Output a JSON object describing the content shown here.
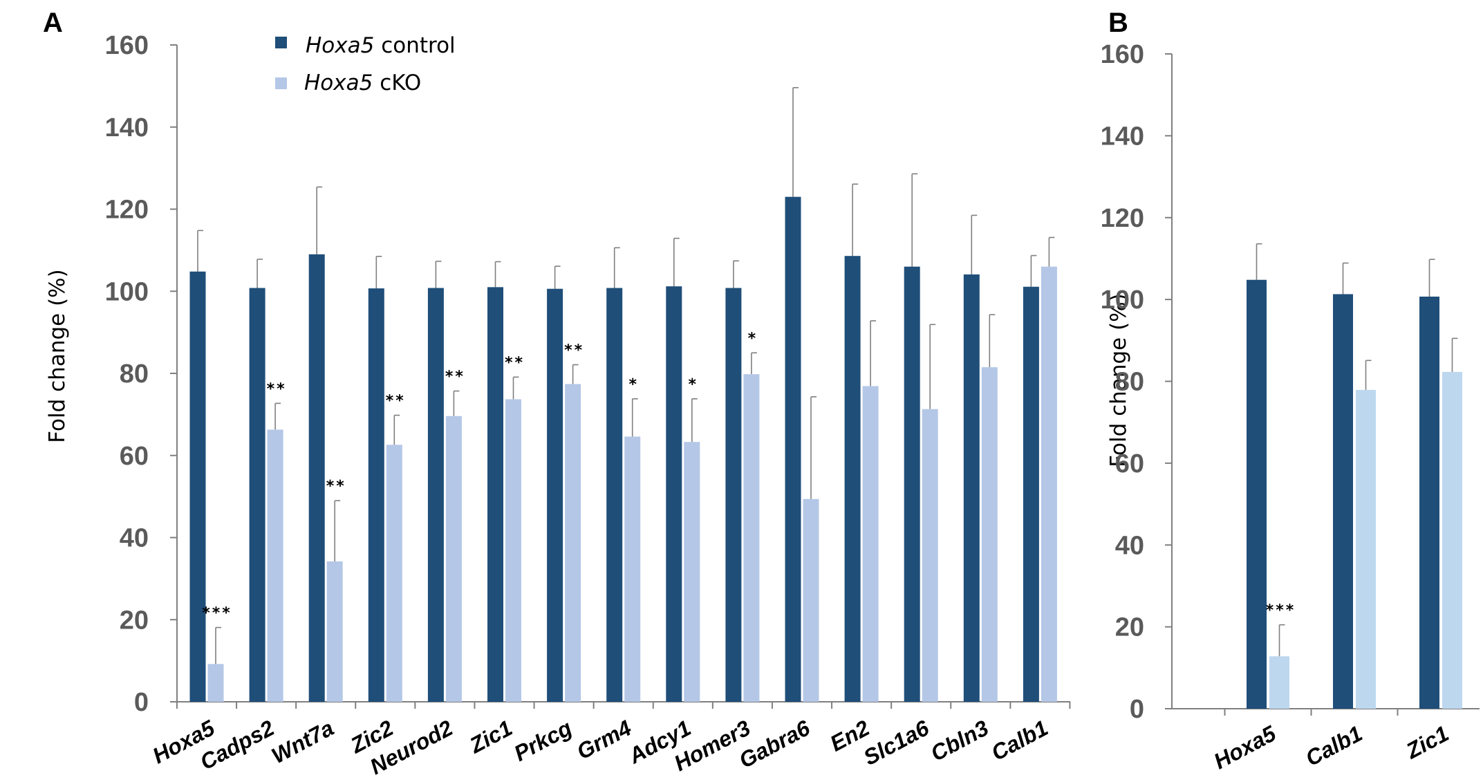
{
  "colors": {
    "control": "#1f4e79",
    "cko_a": "#b4c7e7",
    "cko_b": "#bdd7ee",
    "axis": "#7f7f7f",
    "error": "#7f7f7f"
  },
  "legend": {
    "control_gene": "Hoxa5",
    "control_text": " control",
    "cko_gene": "Hoxa5",
    "cko_text": " cKO"
  },
  "chart_data": [
    {
      "panel": "A",
      "type": "bar",
      "ylabel": "Fold change (%)",
      "ylim": [
        0,
        160
      ],
      "yticks": [
        "0",
        "20",
        "40",
        "60",
        "80",
        "100",
        "120",
        "140",
        "160"
      ],
      "categories": [
        "Hoxa5",
        "Cadps2",
        "Wnt7a",
        "Zic2",
        "Neurod2",
        "Zic1",
        "Prkcg",
        "Grm4",
        "Adcy1",
        "Homer3",
        "Gabra6",
        "En2",
        "Slc1a6",
        "Cbln3",
        "Calb1"
      ],
      "series": [
        {
          "name": "Hoxa5 control",
          "values": [
            104.8,
            100.8,
            109,
            100.7,
            100.8,
            101,
            100.6,
            100.8,
            101.2,
            100.8,
            123,
            108.6,
            106,
            104.1,
            101.1
          ],
          "errors": [
            10,
            7,
            16.4,
            7.8,
            6.5,
            6.2,
            5.5,
            9.8,
            11.7,
            6.6,
            26.6,
            17.5,
            22.6,
            14.4,
            7.6
          ]
        },
        {
          "name": "Hoxa5 cKO",
          "values": [
            9.2,
            66.3,
            34.2,
            62.6,
            69.6,
            73.7,
            77.4,
            64.6,
            63.3,
            79.8,
            49.4,
            76.9,
            71.3,
            81.5,
            106
          ],
          "errors": [
            8.9,
            6.4,
            14.8,
            7.2,
            6.1,
            5.4,
            4.7,
            9.2,
            10.5,
            5.2,
            24.9,
            15.9,
            20.6,
            12.8,
            7.1
          ]
        }
      ],
      "significance": [
        "***",
        "**",
        "**",
        "**",
        "**",
        "**",
        "**",
        "*",
        "*",
        "*",
        "",
        "",
        "",
        "",
        ""
      ]
    },
    {
      "panel": "B",
      "type": "bar",
      "ylabel": "Fold change (%)",
      "ylim": [
        0,
        160
      ],
      "yticks": [
        "0",
        "20",
        "40",
        "60",
        "80",
        "100",
        "120",
        "140",
        "160"
      ],
      "categories": [
        "Hoxa5",
        "Calb1",
        "Zic1"
      ],
      "series": [
        {
          "name": "Hoxa5 control",
          "values": [
            104.8,
            101.3,
            100.7
          ],
          "errors": [
            8.8,
            7.6,
            9.1
          ]
        },
        {
          "name": "Hoxa5 cKO",
          "values": [
            12.8,
            77.9,
            82.3
          ],
          "errors": [
            7.7,
            7.2,
            8.2
          ]
        }
      ],
      "significance": [
        "***",
        "",
        ""
      ]
    }
  ]
}
